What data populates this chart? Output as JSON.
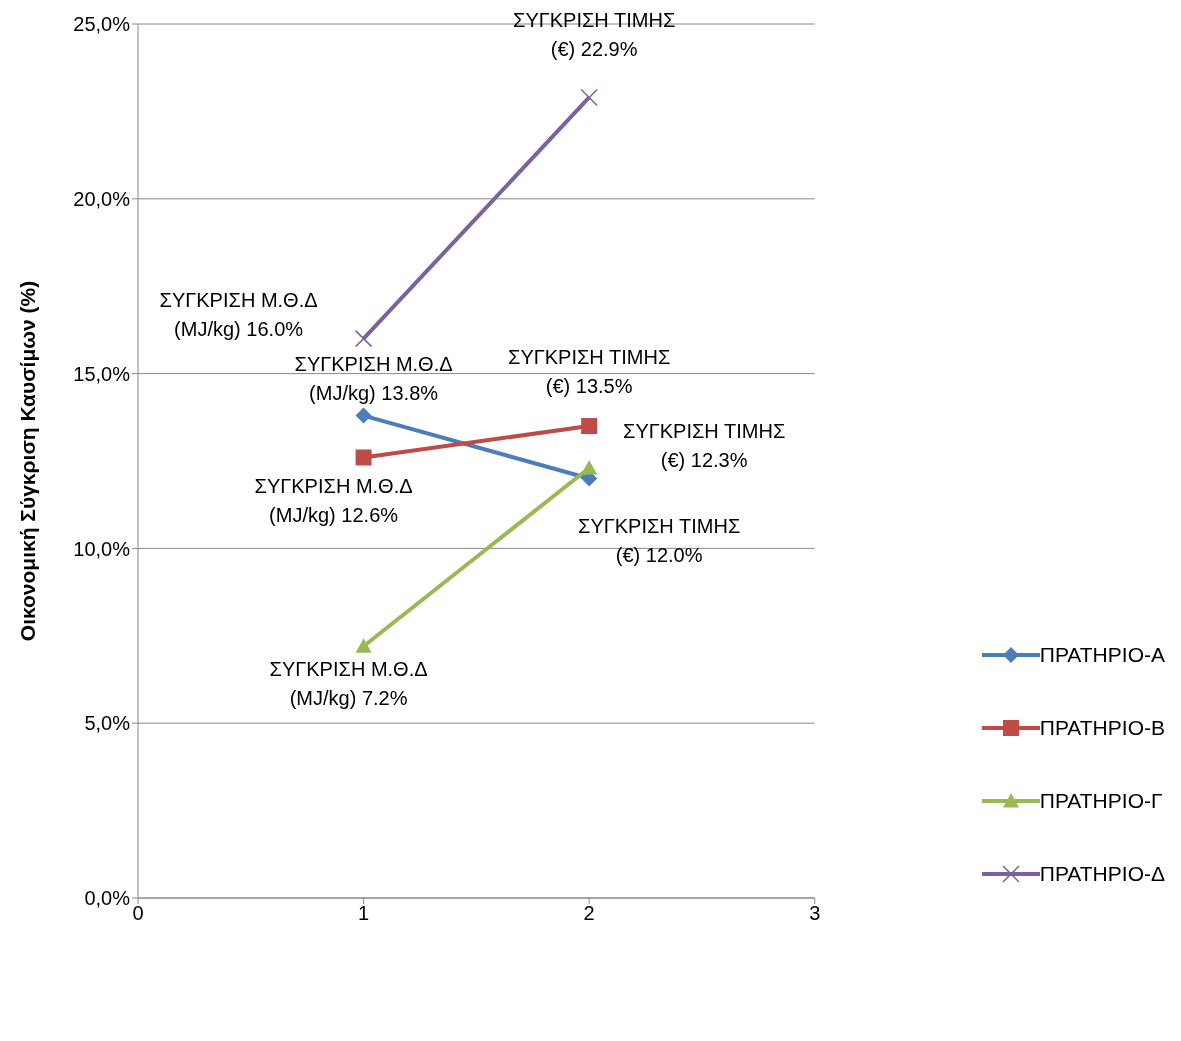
{
  "chart_data": {
    "type": "line",
    "ylabel": "Οικονομική   Σύγκριση   Καυσίμων (%)",
    "x": [
      1,
      2
    ],
    "series": [
      {
        "name": "ΠΡΑΤΗΡΙΟ-Α",
        "color": "#4a7ebb",
        "marker": "diamond",
        "values": [
          13.8,
          12.0
        ],
        "value_labels": [
          "ΣΥΓΚΡΙΣΗ Μ.Θ.Δ\n(MJ/kg)  13.8%",
          "ΣΥΓΚΡΙΣΗ ΤΙΜΗΣ\n(€)  12.0%"
        ]
      },
      {
        "name": "ΠΡΑΤΗΡΙΟ-Β",
        "color": "#be4b48",
        "marker": "square",
        "values": [
          12.6,
          13.5
        ],
        "value_labels": [
          "ΣΥΓΚΡΙΣΗ Μ.Θ.Δ\n(MJ/kg)  12.6%",
          "ΣΥΓΚΡΙΣΗ ΤΙΜΗΣ\n(€)  13.5%"
        ]
      },
      {
        "name": "ΠΡΑΤΗΡΙΟ-Γ",
        "color": "#98b954",
        "marker": "triangle",
        "values": [
          7.2,
          12.3
        ],
        "value_labels": [
          "ΣΥΓΚΡΙΣΗ Μ.Θ.Δ\n(MJ/kg)  7.2%",
          "ΣΥΓΚΡΙΣΗ ΤΙΜΗΣ\n(€)  12.3%"
        ]
      },
      {
        "name": "ΠΡΑΤΗΡΙΟ-Δ",
        "color": "#7d60a0",
        "marker": "cross",
        "values": [
          16.0,
          22.9
        ],
        "value_labels": [
          "ΣΥΓΚΡΙΣΗ Μ.Θ.Δ\n(MJ/kg)  16.0%",
          "ΣΥΓΚΡΙΣΗ ΤΙΜΗΣ\n(€)  22.9%"
        ]
      }
    ],
    "xlim": [
      0,
      3
    ],
    "xticks": [
      0,
      1,
      2,
      3
    ],
    "ylim": [
      0,
      25
    ],
    "yticks": [
      {
        "value": 0,
        "label": "0,0%"
      },
      {
        "value": 5,
        "label": "5,0%"
      },
      {
        "value": 10,
        "label": "10,0%"
      },
      {
        "value": 15,
        "label": "15,0%"
      },
      {
        "value": 20,
        "label": "20,0%"
      },
      {
        "value": 25,
        "label": "25,0%"
      }
    ],
    "grid": "y",
    "legend": "right"
  }
}
